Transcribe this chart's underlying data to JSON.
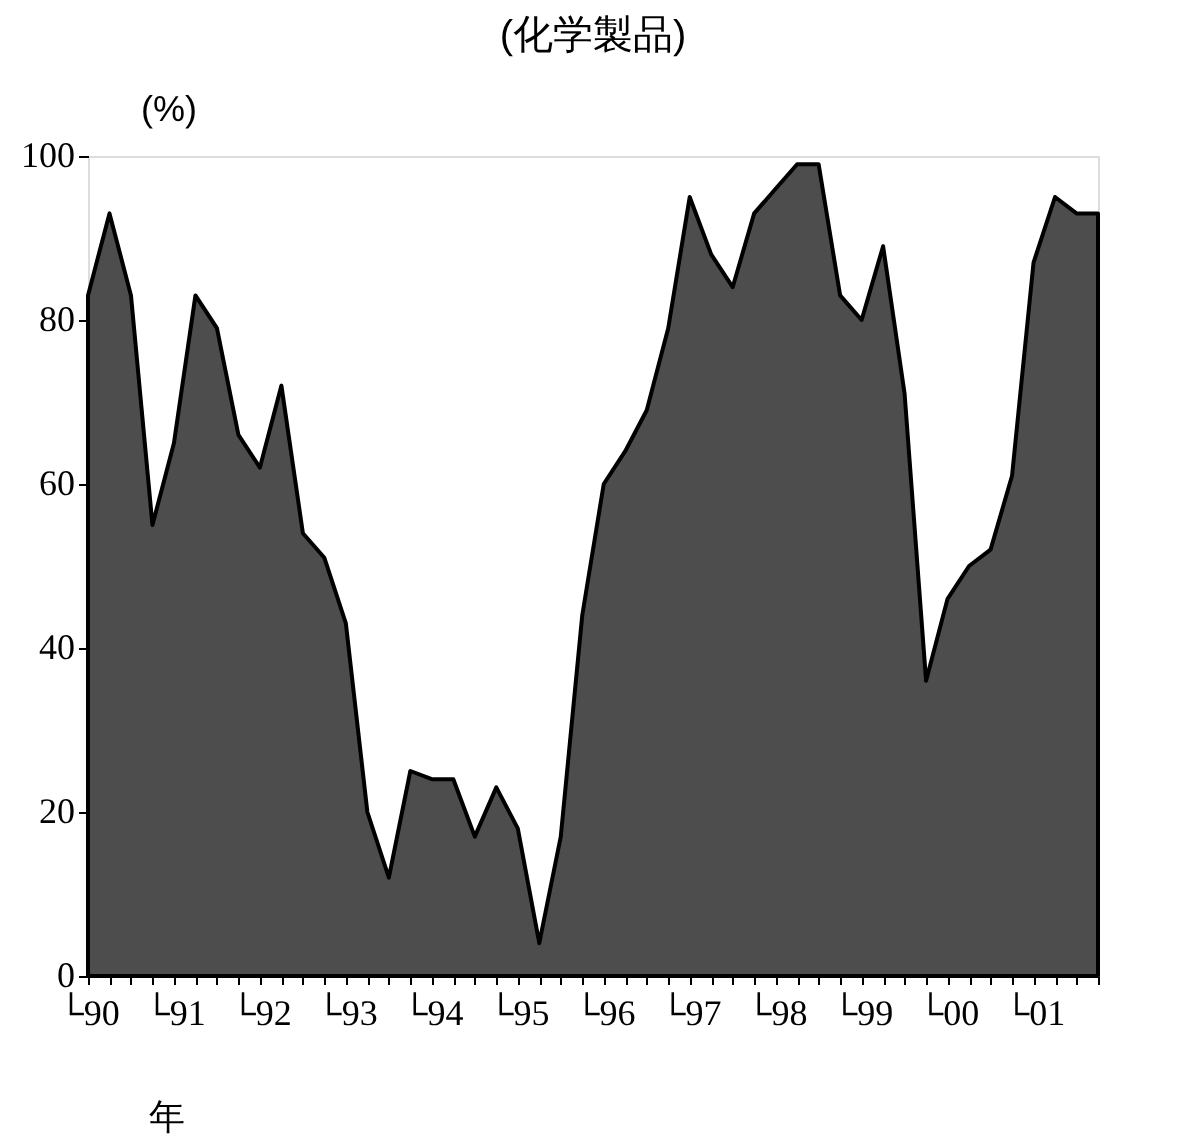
{
  "chart_data": {
    "type": "area",
    "title": "(化学製品)",
    "ylabel": "(%)",
    "xlabel": "年",
    "categories": [
      "└90",
      null,
      null,
      null,
      "└91",
      null,
      null,
      null,
      "└92",
      null,
      null,
      null,
      "└93",
      null,
      null,
      null,
      "└94",
      null,
      null,
      null,
      "└95",
      null,
      null,
      null,
      "└96",
      null,
      null,
      null,
      "└97",
      null,
      null,
      null,
      "└98",
      null,
      null,
      null,
      "└99",
      null,
      null,
      null,
      "└00",
      null,
      null,
      null,
      "└01",
      null,
      null,
      null
    ],
    "series": [
      {
        "color": "#4d4d4d",
        "values": [
          83,
          93,
          83,
          55,
          65,
          83,
          79,
          66,
          62,
          72,
          54,
          51,
          43,
          20,
          12,
          25,
          24,
          24,
          17,
          23,
          18,
          4,
          17,
          44,
          60,
          64,
          69,
          79,
          95,
          88,
          84,
          93,
          96,
          99,
          99,
          83,
          80,
          89,
          71,
          36,
          46,
          50,
          52,
          61,
          87,
          95,
          93,
          93
        ]
      }
    ],
    "ylim": [
      0,
      100
    ],
    "yticks": [
      0,
      20,
      40,
      60,
      80,
      100
    ],
    "grid": false
  }
}
